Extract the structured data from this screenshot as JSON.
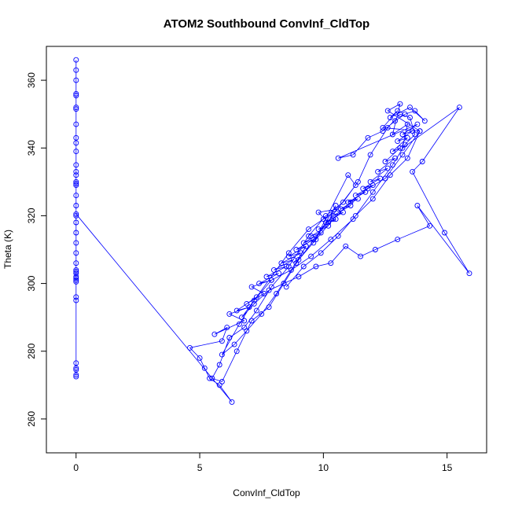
{
  "chart_data": {
    "type": "scatter",
    "title": "ATOM2 Southbound ConvInf_CldTop",
    "xlabel": "ConvInf_CldTop",
    "ylabel": "Theta (K)",
    "xlim": [
      -1.2,
      16.6
    ],
    "ylim": [
      250,
      370
    ],
    "xticks": [
      0,
      5,
      10,
      15
    ],
    "xtick_labels": [
      "0",
      "5",
      "10",
      "15"
    ],
    "yticks": [
      260,
      280,
      300,
      320,
      340,
      360
    ],
    "ytick_labels": [
      "260",
      "280",
      "300",
      "320",
      "340",
      "360"
    ],
    "grid": false,
    "legend": "none",
    "marker": "open-circle",
    "connected": true,
    "color": "#0000ff",
    "series": [
      {
        "x": [
          0,
          0,
          0,
          0,
          0,
          0,
          0,
          0,
          0,
          0,
          0,
          0,
          0,
          0,
          0,
          0,
          0,
          0,
          0,
          0,
          0,
          0,
          0,
          0,
          0,
          0,
          0,
          0,
          0,
          0,
          0,
          0,
          0,
          0,
          0,
          0,
          0,
          0,
          0,
          0,
          6.3,
          5.8,
          5.4,
          5.2,
          5.0,
          4.6,
          5.9,
          6.1,
          5.6,
          6.8,
          6.2,
          7.0,
          6.5,
          7.3,
          6.9,
          7.6,
          7.1,
          7.9,
          7.4,
          8.2,
          7.7,
          8.5,
          8.0,
          8.8,
          8.3,
          9.1,
          8.6,
          9.3,
          8.9,
          9.6,
          9.2,
          9.9,
          9.5,
          10.2,
          9.8,
          10.5,
          10.1,
          10.8,
          10.4,
          11.1,
          10.7,
          11.4,
          11.0,
          11.7,
          11.3,
          12.0,
          11.6,
          12.3,
          11.9,
          12.6,
          12.2,
          12.9,
          12.5,
          13.1,
          12.8,
          13.4,
          13.0,
          13.6,
          13.2,
          13.8,
          10.6,
          11.2,
          11.8,
          12.4,
          12.9,
          13.3,
          13.7,
          14.1,
          13.5,
          12.7,
          13.0,
          12.4,
          13.9,
          12.6,
          13.1,
          12.8,
          13.4,
          13.2,
          15.5,
          14.0,
          13.6,
          14.9,
          15.9,
          13.8,
          14.3,
          13.0,
          12.1,
          11.5,
          10.9,
          10.3,
          9.7,
          9.0,
          8.4,
          7.8,
          7.2,
          6.7,
          8.6,
          9.4,
          10.0,
          10.6,
          9.8,
          10.2,
          10.5,
          9.6,
          11.0,
          11.3,
          8.9,
          9.3,
          8.1,
          7.5,
          6.9,
          6.4,
          5.9,
          6.6,
          7.2,
          7.9,
          8.7,
          9.5,
          10.3,
          11.2,
          12.0,
          12.8,
          13.3,
          13.7,
          13.5,
          13.1,
          12.6,
          11.9,
          11.4,
          10.8,
          10.1,
          9.4,
          8.6,
          7.9,
          7.3,
          6.8,
          6.2,
          5.8,
          5.5,
          5.9,
          6.5,
          7.1,
          7.8,
          8.4,
          9.0,
          9.7,
          10.4,
          11.1,
          11.8,
          12.5,
          13.2,
          13.9,
          13.4,
          12.7,
          12.0,
          11.3,
          10.6,
          9.9,
          9.2,
          8.5
        ],
        "y": [
          366,
          363,
          360,
          356,
          352,
          347,
          343,
          339,
          335,
          332,
          330,
          329,
          326,
          323,
          320,
          318,
          315,
          312,
          309,
          306,
          304,
          303,
          302,
          301,
          300.5,
          296,
          295,
          276.5,
          275,
          274.5,
          273,
          272.5,
          301.5,
          303.5,
          329.5,
          333,
          341.5,
          355.5,
          351.5,
          320.5,
          265,
          270,
          272,
          275,
          278,
          281,
          283,
          287,
          285,
          289,
          291,
          293,
          292,
          296,
          294,
          297,
          299,
          301,
          300,
          303,
          302,
          305,
          304,
          307,
          306,
          309,
          308,
          311,
          310,
          313,
          312,
          315,
          314,
          317,
          316,
          319,
          318,
          321,
          320,
          323,
          322,
          325,
          324,
          327,
          326,
          329,
          328,
          331,
          330,
          334,
          333,
          337,
          336,
          340,
          339,
          343,
          342,
          345,
          344,
          347,
          337,
          338,
          343,
          345,
          348,
          350,
          351,
          348,
          352,
          349,
          351,
          346,
          345,
          351,
          353,
          344,
          347,
          340,
          352,
          336,
          333,
          315,
          303,
          323,
          317,
          313,
          310,
          308,
          311,
          306,
          305,
          302,
          300,
          298,
          294,
          290,
          309,
          316,
          319,
          322,
          321,
          318,
          323,
          312,
          332,
          329,
          306,
          311,
          297,
          291,
          286,
          282,
          279,
          288,
          295,
          301,
          304,
          308,
          313,
          319,
          327,
          335,
          341,
          344,
          349,
          350,
          346,
          338,
          330,
          324,
          320,
          314,
          305,
          299,
          292,
          287,
          284,
          276,
          272,
          271,
          280,
          289,
          293,
          300,
          307,
          313,
          319,
          324,
          328,
          331,
          338,
          345,
          337,
          332,
          325,
          320,
          314,
          309,
          305,
          299
        ]
      }
    ]
  }
}
